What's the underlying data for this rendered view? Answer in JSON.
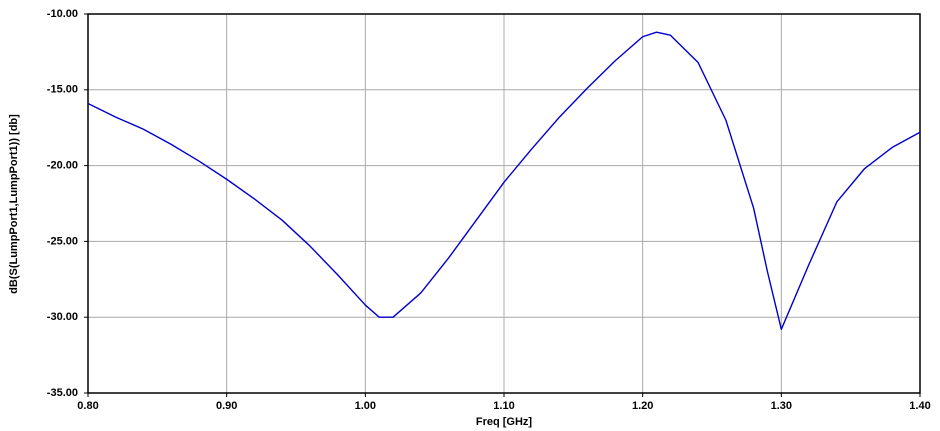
{
  "chart_data": {
    "type": "line",
    "x_label": "Freq [GHz]",
    "y_label": "dB(S(LumpPort1,LumpPort1)) [db]",
    "x": [
      0.8,
      0.82,
      0.84,
      0.86,
      0.88,
      0.9,
      0.92,
      0.94,
      0.96,
      0.98,
      1.0,
      1.01,
      1.02,
      1.04,
      1.06,
      1.08,
      1.1,
      1.12,
      1.14,
      1.16,
      1.18,
      1.2,
      1.21,
      1.22,
      1.24,
      1.26,
      1.28,
      1.29,
      1.3,
      1.32,
      1.34,
      1.36,
      1.38,
      1.4
    ],
    "series": [
      {
        "color": "#0000cc",
        "values": [
          -15.9,
          -16.8,
          -17.6,
          -18.6,
          -19.7,
          -20.9,
          -22.2,
          -23.6,
          -25.3,
          -27.2,
          -29.2,
          -30.0,
          -30.0,
          -28.4,
          -26.1,
          -23.6,
          -21.1,
          -18.9,
          -16.8,
          -14.9,
          -13.1,
          -11.5,
          -11.2,
          -11.4,
          -13.2,
          -17.0,
          -22.8,
          -27.0,
          -30.8,
          -26.5,
          -22.4,
          -20.2,
          -18.8,
          -17.8
        ]
      }
    ],
    "xlim": [
      0.8,
      1.4
    ],
    "xticks": [
      {
        "value": 0.8,
        "label": "0.80"
      },
      {
        "value": 0.9,
        "label": "0.90"
      },
      {
        "value": 1.0,
        "label": "1.00"
      },
      {
        "value": 1.1,
        "label": "1.10"
      },
      {
        "value": 1.2,
        "label": "1.20"
      },
      {
        "value": 1.3,
        "label": "1.30"
      },
      {
        "value": 1.4,
        "label": "1.40"
      }
    ],
    "ylim": [
      -35,
      -10
    ],
    "yticks": [
      {
        "value": -35,
        "label": "-35.00"
      },
      {
        "value": -30,
        "label": "-30.00"
      },
      {
        "value": -25,
        "label": "-25.00"
      },
      {
        "value": -20,
        "label": "-20.00"
      },
      {
        "value": -15,
        "label": "-15.00"
      },
      {
        "value": -10,
        "label": "-10.00"
      }
    ],
    "grid": true
  }
}
